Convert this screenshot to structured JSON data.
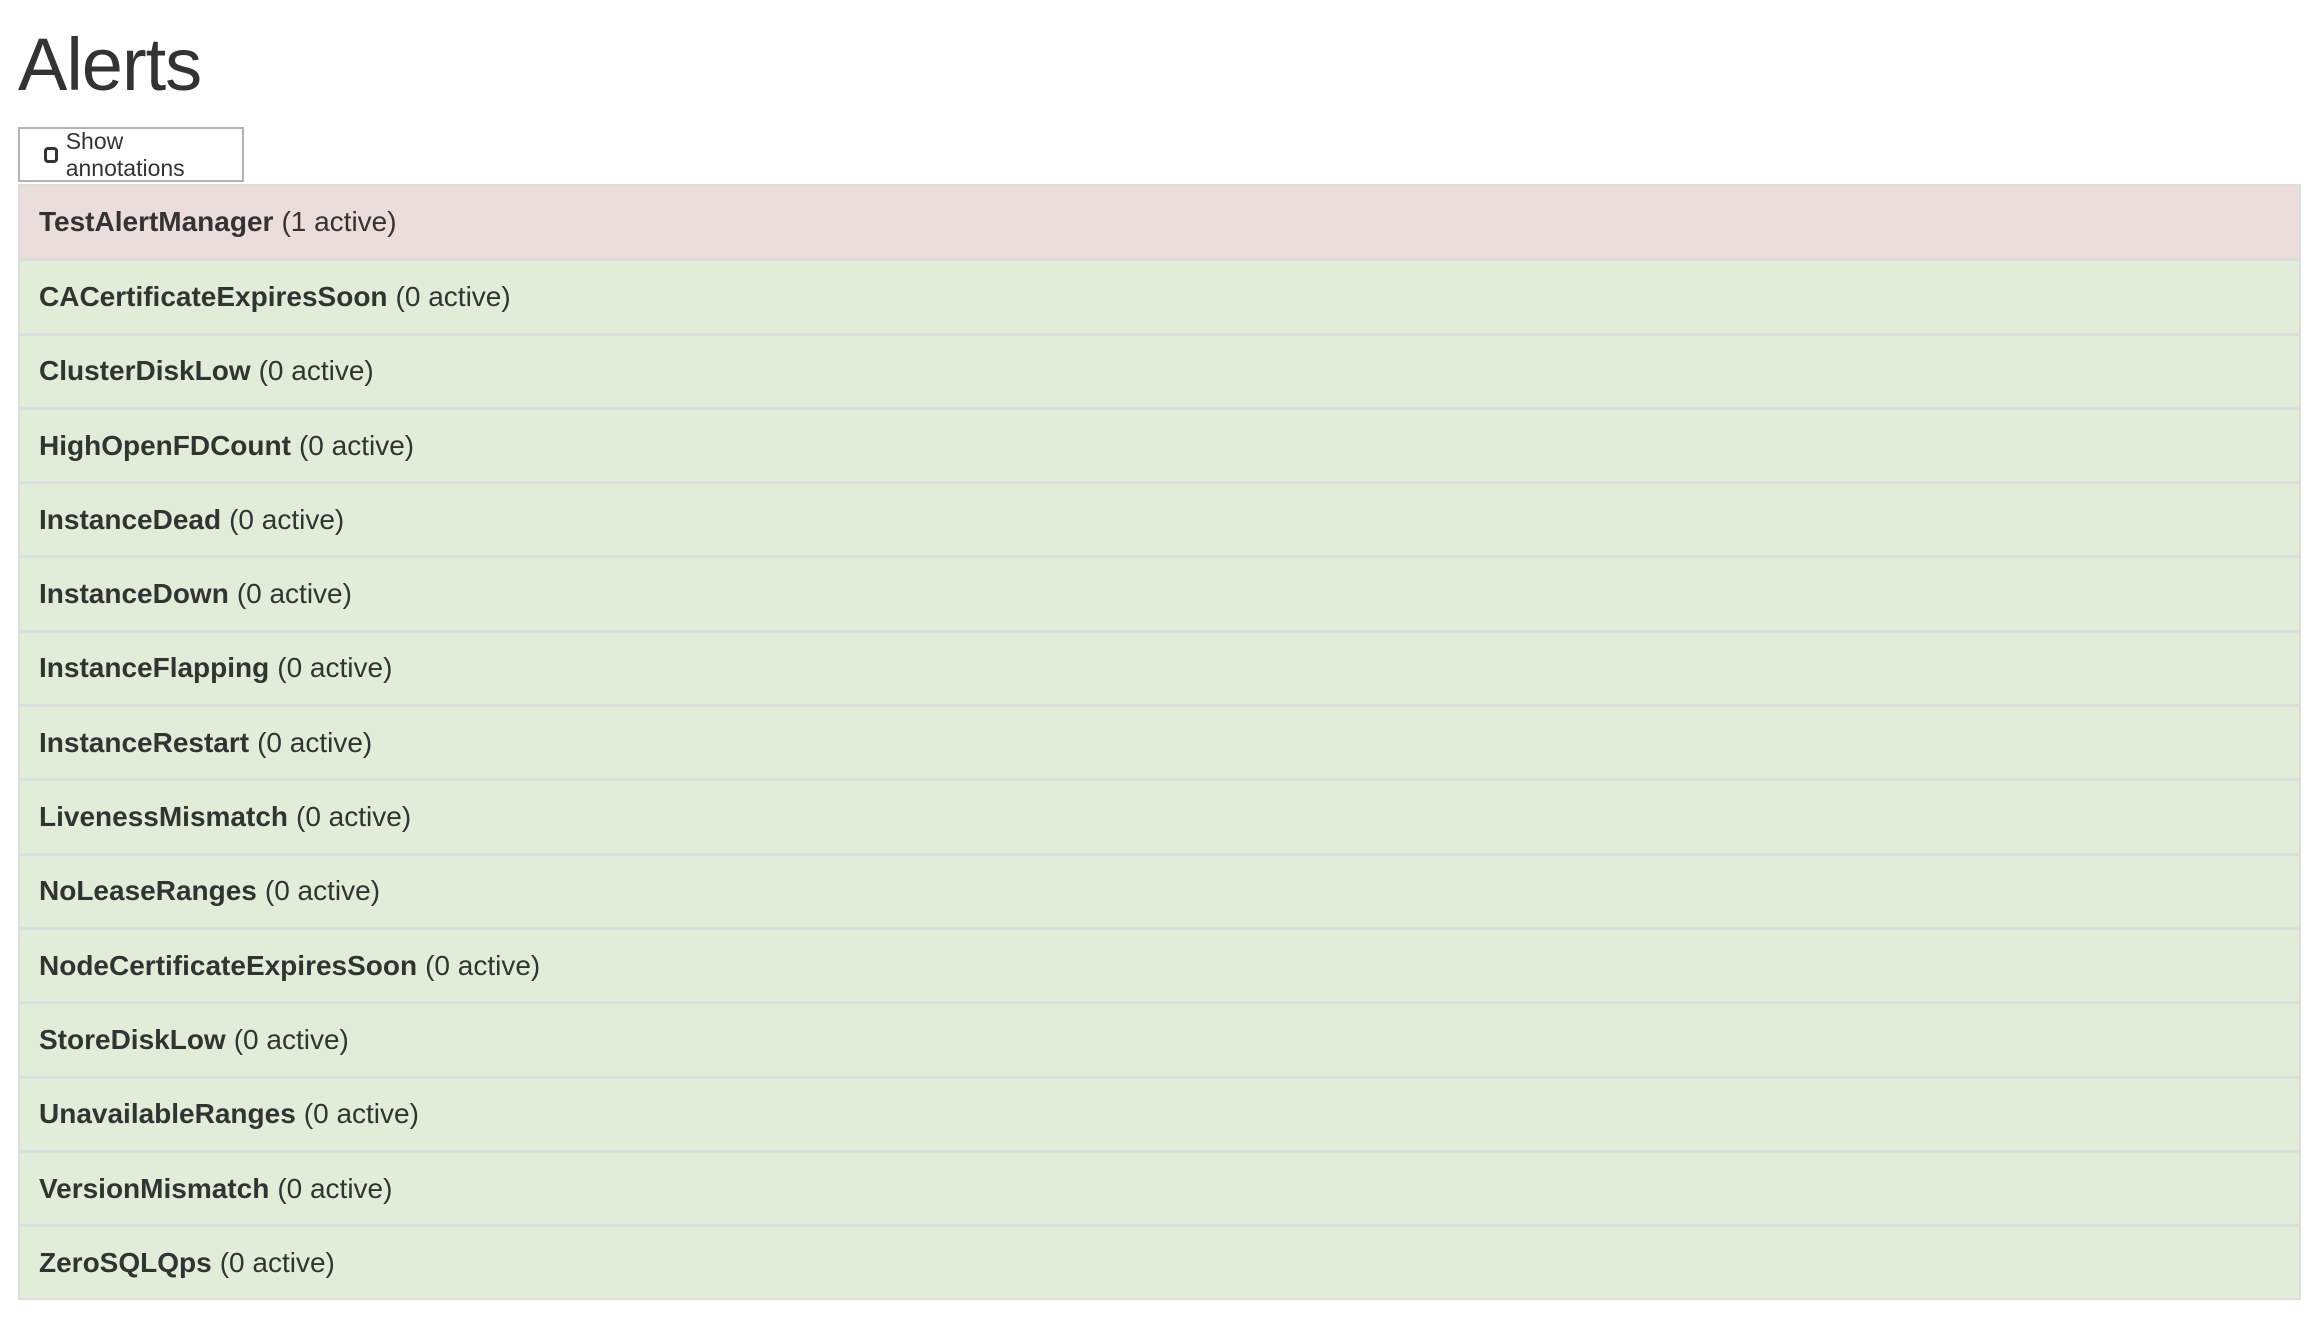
{
  "page": {
    "title": "Alerts"
  },
  "toolbar": {
    "show_annotations_label": "Show annotations",
    "show_annotations_checked": false
  },
  "colors": {
    "firing": "#ecdddd",
    "inactive": "#e1edd9",
    "border": "#dddddd"
  },
  "alerts": [
    {
      "name": "TestAlertManager",
      "count": "(1 active)",
      "state": "firing"
    },
    {
      "name": "CACertificateExpiresSoon",
      "count": "(0 active)",
      "state": "inactive"
    },
    {
      "name": "ClusterDiskLow",
      "count": "(0 active)",
      "state": "inactive"
    },
    {
      "name": "HighOpenFDCount",
      "count": "(0 active)",
      "state": "inactive"
    },
    {
      "name": "InstanceDead",
      "count": "(0 active)",
      "state": "inactive"
    },
    {
      "name": "InstanceDown",
      "count": "(0 active)",
      "state": "inactive"
    },
    {
      "name": "InstanceFlapping",
      "count": "(0 active)",
      "state": "inactive"
    },
    {
      "name": "InstanceRestart",
      "count": "(0 active)",
      "state": "inactive"
    },
    {
      "name": "LivenessMismatch",
      "count": "(0 active)",
      "state": "inactive"
    },
    {
      "name": "NoLeaseRanges",
      "count": "(0 active)",
      "state": "inactive"
    },
    {
      "name": "NodeCertificateExpiresSoon",
      "count": "(0 active)",
      "state": "inactive"
    },
    {
      "name": "StoreDiskLow",
      "count": "(0 active)",
      "state": "inactive"
    },
    {
      "name": "UnavailableRanges",
      "count": "(0 active)",
      "state": "inactive"
    },
    {
      "name": "VersionMismatch",
      "count": "(0 active)",
      "state": "inactive"
    },
    {
      "name": "ZeroSQLQps",
      "count": "(0 active)",
      "state": "inactive"
    }
  ]
}
